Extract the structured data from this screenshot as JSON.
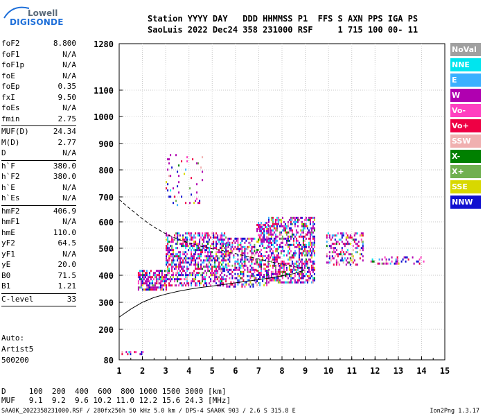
{
  "logo": {
    "top": "Lowell",
    "bottom": "DIGISONDE"
  },
  "header": {
    "line1": "Station YYYY DAY   DDD HHMMSS P1  FFS S AXN PPS IGA PS",
    "line2": "SaoLuis 2022 Dec24 358 231000 RSF     1 715 100 00- 11"
  },
  "params": [
    {
      "name": "foF2",
      "value": "8.800"
    },
    {
      "name": "foF1",
      "value": "N/A"
    },
    {
      "name": "foF1p",
      "value": "N/A"
    },
    {
      "name": "foE",
      "value": "N/A"
    },
    {
      "name": "foEp",
      "value": "0.35"
    },
    {
      "name": "fxI",
      "value": "9.50"
    },
    {
      "name": "foEs",
      "value": "N/A"
    },
    {
      "name": "fmin",
      "value": "2.75"
    },
    {
      "sep": true
    },
    {
      "name": "MUF(D)",
      "value": "24.34"
    },
    {
      "name": "M(D)",
      "value": "2.77"
    },
    {
      "name": "D",
      "value": "N/A"
    },
    {
      "sep": true
    },
    {
      "name": "h`F",
      "value": "380.0"
    },
    {
      "name": "h`F2",
      "value": "380.0"
    },
    {
      "name": "h`E",
      "value": "N/A"
    },
    {
      "name": "h`Es",
      "value": "N/A"
    },
    {
      "sep": true
    },
    {
      "name": "hmF2",
      "value": "406.9"
    },
    {
      "name": "hmF1",
      "value": "N/A"
    },
    {
      "name": "hmE",
      "value": "110.0"
    },
    {
      "name": "yF2",
      "value": "64.5"
    },
    {
      "name": "yF1",
      "value": "N/A"
    },
    {
      "name": "yE",
      "value": "20.0"
    },
    {
      "name": "B0",
      "value": "71.5"
    },
    {
      "name": "B1",
      "value": "1.21"
    },
    {
      "sep": true
    },
    {
      "name": "C-level",
      "value": "33"
    },
    {
      "sep": true
    }
  ],
  "auto": {
    "line1": "Auto:",
    "line2": "Artist5",
    "line3": "500200"
  },
  "bottom": {
    "d_line": "D     100  200  400  600  800 1000 1500 3000 [km]",
    "muf_line": "MUF   9.1  9.2  9.6 10.2 11.0 12.2 15.6 24.3 [MHz]"
  },
  "footer": {
    "left": "SAA0K_2022358231000.RSF / 280fx256h 50 kHz 5.0 km / DPS-4 SAA0K 903 / 2.6 S 315.8 E",
    "right": "Ion2Png 1.3.17"
  },
  "legend": [
    {
      "label": "NoVal",
      "color": "#a0a0a0"
    },
    {
      "label": "NNE",
      "color": "#00e5ee"
    },
    {
      "label": "E",
      "color": "#3ab0ff"
    },
    {
      "label": "W",
      "color": "#b000b0"
    },
    {
      "label": "Vo-",
      "color": "#ff40c0"
    },
    {
      "label": "Vo+",
      "color": "#ee0044"
    },
    {
      "label": "SSW",
      "color": "#f0b0b0"
    },
    {
      "label": "X-",
      "color": "#008000"
    },
    {
      "label": "X+",
      "color": "#70b050"
    },
    {
      "label": "SSE",
      "color": "#d8d800"
    },
    {
      "label": "NNW",
      "color": "#1010d0"
    }
  ],
  "chart_data": {
    "type": "scatter",
    "title": "",
    "xlabel": "",
    "ylabel": "",
    "xlim": [
      1,
      15
    ],
    "ylim": [
      80,
      1280
    ],
    "x_ticks": [
      1,
      2,
      3,
      4,
      5,
      6,
      7,
      8,
      9,
      10,
      11,
      12,
      13,
      14,
      15
    ],
    "y_ticks": [
      80,
      200,
      300,
      400,
      500,
      600,
      700,
      800,
      900,
      1000,
      1100,
      1280
    ],
    "grid": true,
    "traces": [
      {
        "freq_min": 1.8,
        "freq_max": 3.0,
        "h_min": 350,
        "h_max": 420,
        "density": 0.7
      },
      {
        "freq_min": 3.0,
        "freq_max": 5.6,
        "h_min": 360,
        "h_max": 560,
        "density": 0.55
      },
      {
        "freq_min": 5.6,
        "freq_max": 6.9,
        "h_min": 360,
        "h_max": 540,
        "density": 0.45
      },
      {
        "freq_min": 6.9,
        "freq_max": 7.4,
        "h_min": 360,
        "h_max": 600,
        "density": 0.5
      },
      {
        "freq_min": 7.4,
        "freq_max": 9.4,
        "h_min": 370,
        "h_max": 620,
        "density": 0.55
      },
      {
        "freq_min": 9.9,
        "freq_max": 11.5,
        "h_min": 440,
        "h_max": 560,
        "density": 0.35
      },
      {
        "freq_min": 11.8,
        "freq_max": 14.1,
        "h_min": 445,
        "h_max": 470,
        "density": 0.25
      },
      {
        "freq_min": 1.1,
        "freq_max": 2.0,
        "h_min": 100,
        "h_max": 115,
        "density": 0.6
      },
      {
        "freq_min": 3.0,
        "freq_max": 4.6,
        "h_min": 660,
        "h_max": 860,
        "density": 0.08
      }
    ],
    "profile_solid": {
      "x": [
        1.0,
        1.5,
        2.0,
        2.5,
        3.0,
        3.5,
        4.0,
        4.5,
        5.0,
        5.5,
        6.0,
        6.5,
        7.0,
        7.5,
        8.0,
        8.5,
        9.0
      ],
      "y": [
        245,
        275,
        300,
        318,
        330,
        340,
        348,
        355,
        360,
        366,
        372,
        378,
        384,
        390,
        398,
        406,
        420
      ]
    },
    "profile_dashed": {
      "x": [
        1.0,
        1.3,
        1.7,
        2.1,
        2.5,
        3.0,
        3.5,
        4.0,
        4.5,
        5.0,
        5.5
      ],
      "y": [
        690,
        665,
        635,
        605,
        580,
        555,
        535,
        520,
        508,
        498,
        490
      ]
    },
    "profile_dashed2": {
      "x": [
        5.5,
        6.0,
        6.5,
        7.0,
        7.5,
        8.0,
        8.5,
        9.0
      ],
      "y": [
        488,
        480,
        470,
        460,
        450,
        440,
        432,
        425
      ]
    }
  }
}
